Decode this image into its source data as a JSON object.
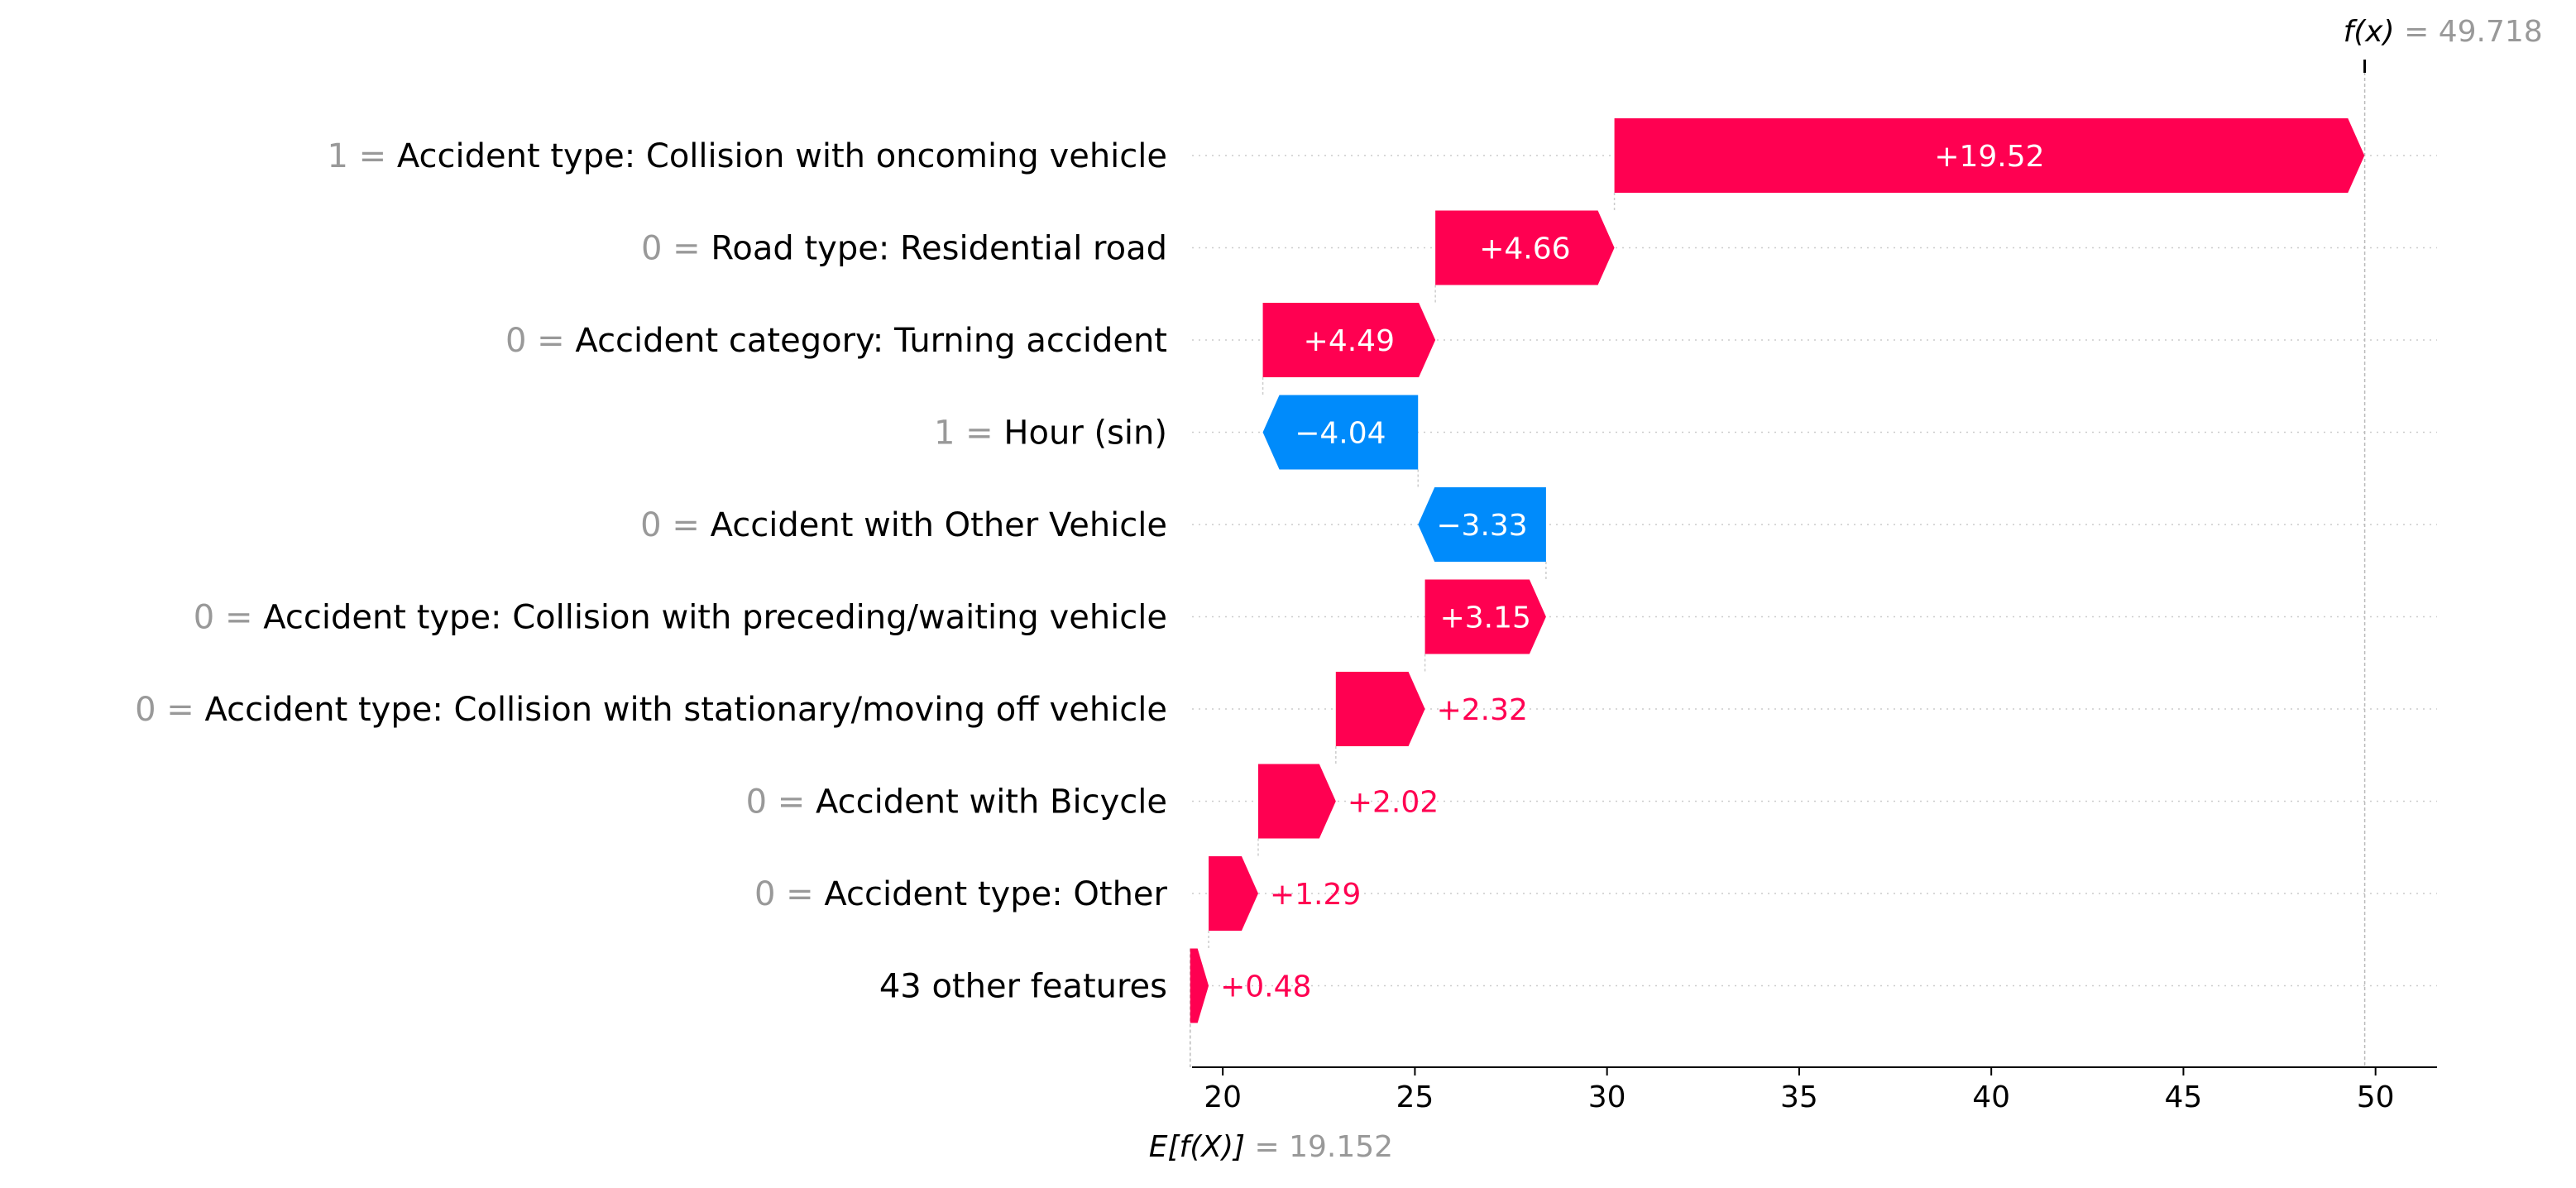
{
  "chart_data": {
    "type": "waterfall",
    "base_value": 19.152,
    "output_value": 49.718,
    "base_label": "E[f(X)]",
    "output_label": "f(x)",
    "base_value_text": "19.152",
    "output_value_text": "49.718",
    "xlim": [
      19.2,
      51.6
    ],
    "xticks": [
      20,
      25,
      30,
      35,
      40,
      45,
      50
    ],
    "colors": {
      "positive": "#ff0051",
      "negative": "#008bfb"
    },
    "features": [
      {
        "value": "1",
        "name": "Accident type: Collision with oncoming vehicle",
        "contribution": 19.52,
        "label": "+19.52"
      },
      {
        "value": "0",
        "name": "Road type: Residential road",
        "contribution": 4.66,
        "label": "+4.66"
      },
      {
        "value": "0",
        "name": "Accident category: Turning accident",
        "contribution": 4.49,
        "label": "+4.49"
      },
      {
        "value": "1",
        "name": "Hour (sin)",
        "contribution": -4.04,
        "label": "−4.04"
      },
      {
        "value": "0",
        "name": "Accident with Other Vehicle",
        "contribution": -3.33,
        "label": "−3.33"
      },
      {
        "value": "0",
        "name": "Accident type: Collision with preceding/waiting vehicle",
        "contribution": 3.15,
        "label": "+3.15"
      },
      {
        "value": "0",
        "name": "Accident type: Collision with stationary/moving off vehicle",
        "contribution": 2.32,
        "label": "+2.32"
      },
      {
        "value": "0",
        "name": "Accident with Bicycle",
        "contribution": 2.02,
        "label": "+2.02"
      },
      {
        "value": "0",
        "name": "Accident type: Other",
        "contribution": 1.29,
        "label": "+1.29"
      },
      {
        "value": "",
        "name": "43 other features",
        "contribution": 0.48,
        "label": "+0.48"
      }
    ]
  }
}
